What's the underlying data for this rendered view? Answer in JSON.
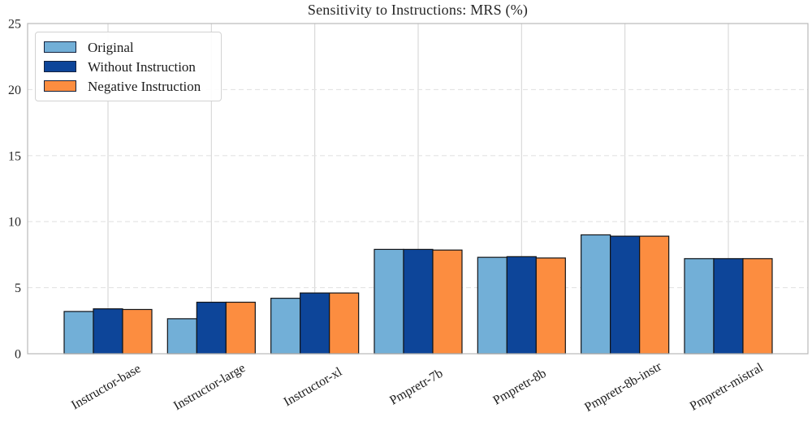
{
  "chart_data": {
    "type": "bar",
    "title": "Sensitivity to Instructions: MRS (%)",
    "categories": [
      "Instructor-base",
      "Instructor-large",
      "Instructor-xl",
      "Pmpretr-7b",
      "Pmpretr-8b",
      "Pmpretr-8b-instr",
      "Pmpretr-mistral"
    ],
    "series": [
      {
        "name": "Original",
        "color": "#72afd7",
        "values": [
          3.2,
          2.65,
          4.2,
          7.9,
          7.3,
          9.0,
          7.2
        ]
      },
      {
        "name": "Without Instruction",
        "color": "#0d4599",
        "values": [
          3.4,
          3.9,
          4.6,
          7.9,
          7.35,
          8.9,
          7.2
        ]
      },
      {
        "name": "Negative Instruction",
        "color": "#fc8d40",
        "values": [
          3.35,
          3.9,
          4.6,
          7.85,
          7.25,
          8.9,
          7.2
        ]
      }
    ],
    "ylim": [
      0,
      25
    ],
    "yticks": [
      0,
      5,
      10,
      15,
      20,
      25
    ],
    "xlabel": "",
    "ylabel": "",
    "bar_edge_color": "#111418",
    "legend_position": "upper-left",
    "grid": "horizontal dashed + vertical solid, light gray",
    "x_tick_rotation_deg": 30
  },
  "colors": {
    "spine": "#b9b9b9",
    "vgrid": "#d6d6d6",
    "hgrid": "#e3e3e3",
    "tick_text": "#262626"
  }
}
